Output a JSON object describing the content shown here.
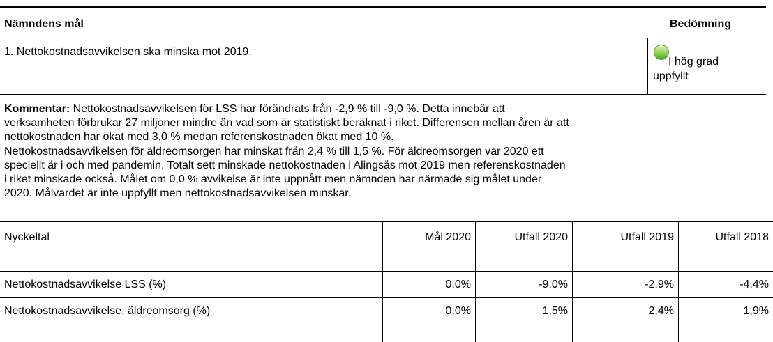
{
  "goal": {
    "header": {
      "goal": "Nämndens mål",
      "assessment": "Bedömning"
    },
    "text": "1. Nettokostnadsavvikelsen ska minska mot 2019.",
    "status": [
      "I hög grad",
      "uppfyllt"
    ]
  },
  "comment": {
    "label": "Kommentar:",
    "lines": [
      " Nettokostnadsavvikelsen för LSS har förändrats från -2,9 % till -9,0 %. Detta innebär att",
      "verksamheten förbrukar 27 miljoner mindre än vad som är statistiskt beräknat i riket. Differensen mellan åren är att",
      "nettokostnaden har ökat med 3,0 % medan referenskostnaden ökat med 10 %.",
      "Nettokostnadsavvikelsen för äldreomsorgen har minskat från 2,4 % till 1,5 %. För äldreomsorgen var 2020 ett",
      "speciellt år i och med pandemin. Totalt sett minskade nettokostnaden i Alingsås mot 2019 men referenskostnaden",
      "i riket minskade också. Målet om 0,0 % avvikelse är inte uppnått men nämnden har närmade sig målet under",
      "2020. Målvärdet är inte uppfyllt men nettokostnadsavvikelsen minskar."
    ]
  },
  "table": {
    "columns": [
      "Nyckeltal",
      "Mål 2020",
      "Utfall 2020",
      "Utfall 2019",
      "Utfall 2018"
    ],
    "rows": [
      [
        "Nettokostnadsavvikelse LSS (%)",
        "0,0%",
        "-9,0%",
        "-2,9%",
        "-4,4%"
      ],
      [
        "Nettokostnadsavvikelse, äldreomsorg (%)",
        "0,0%",
        "1,5%",
        "2,4%",
        "1,9%"
      ]
    ]
  }
}
